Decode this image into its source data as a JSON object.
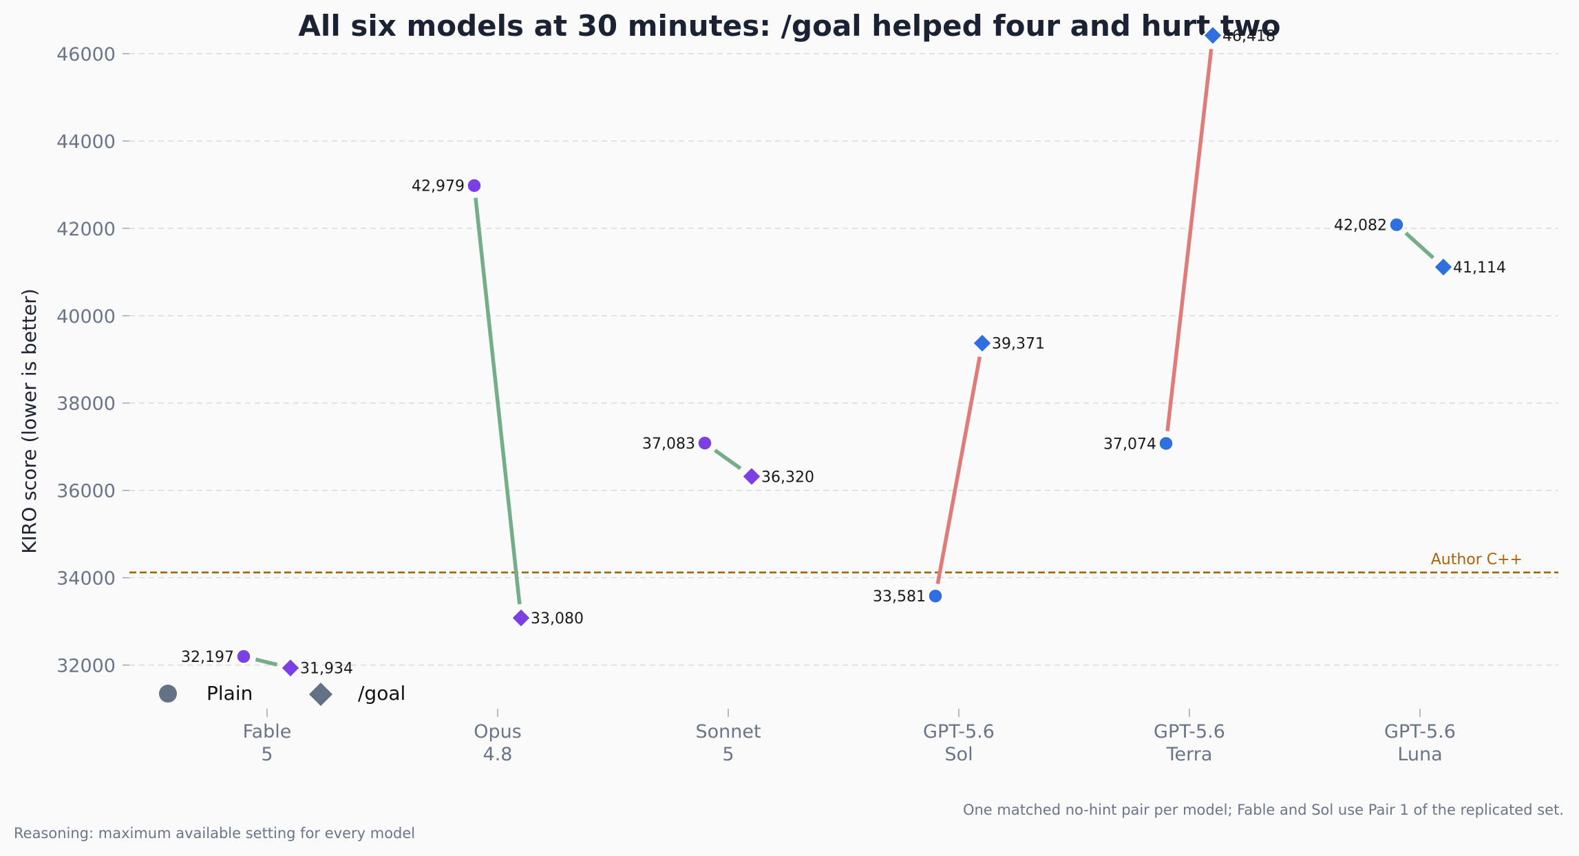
{
  "chart_data": {
    "type": "scatter",
    "title": "All six models at 30 minutes: /goal helped four and hurt two",
    "ylabel": "KIRO score (lower is better)",
    "ylim": [
      31000,
      46800
    ],
    "yticks": [
      32000,
      34000,
      36000,
      38000,
      40000,
      42000,
      44000,
      46000
    ],
    "grid": true,
    "categories": [
      {
        "line1": "Fable",
        "line2": "5"
      },
      {
        "line1": "Opus",
        "line2": "4.8"
      },
      {
        "line1": "Sonnet",
        "line2": "5"
      },
      {
        "line1": "GPT-5.6",
        "line2": "Sol"
      },
      {
        "line1": "GPT-5.6",
        "line2": "Terra"
      },
      {
        "line1": "GPT-5.6",
        "line2": "Luna"
      }
    ],
    "series": [
      {
        "name": "Plain",
        "marker": "circle",
        "values": [
          32197,
          42979,
          37083,
          33581,
          37074,
          42082
        ],
        "labels": [
          "32,197",
          "42,979",
          "37,083",
          "33,581",
          "37,074",
          "42,082"
        ]
      },
      {
        "name": "/goal",
        "marker": "diamond",
        "values": [
          31934,
          33080,
          36320,
          39371,
          46418,
          41114
        ],
        "labels": [
          "31,934",
          "33,080",
          "36,320",
          "39,371",
          "46,418",
          "41,114"
        ]
      }
    ],
    "point_colors": [
      "#7b3fe4",
      "#7b3fe4",
      "#7b3fe4",
      "#2f6fe0",
      "#2f6fe0",
      "#2f6fe0"
    ],
    "improve_color": "#75ad88",
    "worsen_color": "#de7c7b",
    "reference_line": {
      "label": "Author C++",
      "value": 34120,
      "color": "#a0620a"
    },
    "legend_color": "#637085",
    "legend_position": "lower-left",
    "footnote_right": "One matched no-hint pair per model; Fable and Sol use Pair 1 of the replicated set.",
    "footnote_left": "Reasoning: maximum available setting for every model"
  }
}
